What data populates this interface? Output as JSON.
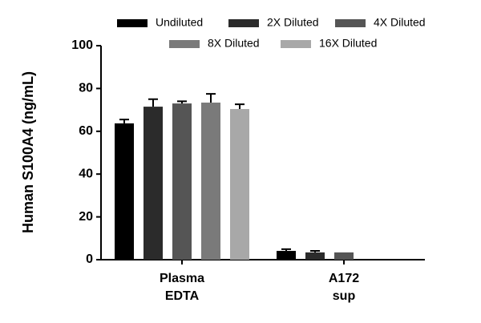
{
  "chart_data": {
    "type": "bar",
    "ylabel": "Human S100A4 (ng/mL)",
    "categories": [
      [
        "Plasma",
        "EDTA"
      ],
      [
        "A172",
        "sup"
      ]
    ],
    "series": [
      {
        "name": "Undiluted",
        "color": "#000000",
        "values": [
          63.7,
          4.1
        ],
        "errors": [
          1.8,
          0.8
        ]
      },
      {
        "name": "2X Diluted",
        "color": "#2b2b2b",
        "values": [
          71.5,
          3.4
        ],
        "errors": [
          3.5,
          0.7
        ]
      },
      {
        "name": "4X Diluted",
        "color": "#555555",
        "values": [
          73,
          3.4
        ],
        "errors": [
          1,
          0
        ]
      },
      {
        "name": "8X Diluted",
        "color": "#7a7a7a",
        "values": [
          73.4,
          null
        ],
        "errors": [
          4.1,
          null
        ]
      },
      {
        "name": "16X Diluted",
        "color": "#a8a8a8",
        "values": [
          70.4,
          null
        ],
        "errors": [
          2.2,
          null
        ]
      }
    ],
    "ylim": [
      0,
      100
    ],
    "yticks": [
      0,
      20,
      40,
      60,
      80,
      100
    ]
  }
}
